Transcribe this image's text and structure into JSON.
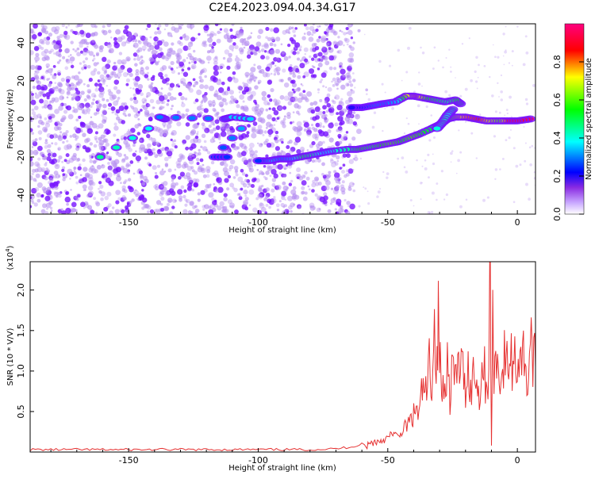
{
  "title": "C2E4.2023.094.04.34.G17",
  "colors": {
    "snr_line": "#e63232",
    "weak_dots": "#b48cf0",
    "strong_dots": "#7814ff",
    "colorbar_stops": [
      "#ffffff",
      "#8a2be2",
      "#0000ff",
      "#00ffff",
      "#00ff00",
      "#ffff00",
      "#ff0000",
      "#ff007f"
    ]
  },
  "chart_data": [
    {
      "type": "heatmap",
      "xlabel": "Height of straight line (km)",
      "ylabel": "Frequency (Hz)",
      "xlim": [
        -188,
        7
      ],
      "ylim": [
        -50,
        50
      ],
      "x_ticks": [
        -150,
        -100,
        -50,
        0
      ],
      "x_tick_labels": [
        "-150",
        "-100",
        "-50",
        "0"
      ],
      "y_ticks": [
        -40,
        -20,
        0,
        20,
        40
      ],
      "y_tick_labels": [
        "-40",
        "-20",
        "0",
        "20",
        "40"
      ],
      "colorbar": {
        "label": "Normalized spectral amplitude",
        "range": [
          0,
          1
        ],
        "ticks": [
          0.0,
          0.2,
          0.4,
          0.6,
          0.8
        ],
        "tick_labels": [
          "0.0",
          "0.2",
          "0.4",
          "0.6",
          "0.8"
        ]
      },
      "traces": [
        {
          "name": "main",
          "points": [
            {
              "x": 5,
              "y": 0,
              "amp": 0.95
            },
            {
              "x": 0,
              "y": -1,
              "amp": 0.9
            },
            {
              "x": -4,
              "y": -1,
              "amp": 0.92
            },
            {
              "x": -8,
              "y": -1,
              "amp": 0.6
            },
            {
              "x": -12,
              "y": -1,
              "amp": 0.7
            },
            {
              "x": -16,
              "y": 0,
              "amp": 0.85
            },
            {
              "x": -20,
              "y": 1,
              "amp": 0.8
            },
            {
              "x": -24,
              "y": 1,
              "amp": 0.7
            },
            {
              "x": -27,
              "y": 0,
              "amp": 0.55
            },
            {
              "x": -30,
              "y": -3,
              "amp": 0.45
            },
            {
              "x": -33,
              "y": -5,
              "amp": 0.5
            },
            {
              "x": -38,
              "y": -8,
              "amp": 0.55
            },
            {
              "x": -42,
              "y": -10,
              "amp": 0.6
            },
            {
              "x": -46,
              "y": -12,
              "amp": 0.55
            },
            {
              "x": -50,
              "y": -13,
              "amp": 0.6
            },
            {
              "x": -54,
              "y": -14,
              "amp": 0.55
            },
            {
              "x": -58,
              "y": -15,
              "amp": 0.5
            },
            {
              "x": -62,
              "y": -16,
              "amp": 0.55
            },
            {
              "x": -66,
              "y": -16,
              "amp": 0.45
            },
            {
              "x": -72,
              "y": -17,
              "amp": 0.4
            },
            {
              "x": -76,
              "y": -18,
              "amp": 0.35
            },
            {
              "x": -80,
              "y": -19,
              "amp": 0.45
            },
            {
              "x": -84,
              "y": -20,
              "amp": 0.5
            },
            {
              "x": -88,
              "y": -21,
              "amp": 0.35
            },
            {
              "x": -92,
              "y": -21,
              "amp": 0.3
            },
            {
              "x": -96,
              "y": -22,
              "amp": 0.35
            },
            {
              "x": -100,
              "y": -22,
              "amp": 0.25
            }
          ]
        },
        {
          "name": "upper",
          "points": [
            {
              "x": -22,
              "y": 8,
              "amp": 0.5
            },
            {
              "x": -24,
              "y": 10,
              "amp": 0.55
            },
            {
              "x": -28,
              "y": 9,
              "amp": 0.45
            },
            {
              "x": -32,
              "y": 10,
              "amp": 0.5
            },
            {
              "x": -36,
              "y": 11,
              "amp": 0.55
            },
            {
              "x": -40,
              "y": 12,
              "amp": 0.8
            },
            {
              "x": -43,
              "y": 12,
              "amp": 0.7
            },
            {
              "x": -47,
              "y": 9,
              "amp": 0.35
            },
            {
              "x": -52,
              "y": 8,
              "amp": 0.3
            },
            {
              "x": -56,
              "y": 7,
              "amp": 0.3
            },
            {
              "x": -60,
              "y": 6,
              "amp": 0.25
            },
            {
              "x": -64,
              "y": 6,
              "amp": 0.2
            }
          ]
        },
        {
          "name": "branch",
          "points": [
            {
              "x": -25,
              "y": 5,
              "amp": 0.45
            },
            {
              "x": -27,
              "y": 2,
              "amp": 0.4
            },
            {
              "x": -29,
              "y": -2,
              "amp": 0.45
            },
            {
              "x": -31,
              "y": -5,
              "amp": 0.4
            }
          ]
        },
        {
          "name": "isolated",
          "points": [
            {
              "x": -161,
              "y": -20,
              "amp": 0.45
            },
            {
              "x": -136,
              "y": 0,
              "amp": 0.35
            },
            {
              "x": -138,
              "y": 1,
              "amp": 0.3
            },
            {
              "x": -113,
              "y": 0,
              "amp": 0.3
            },
            {
              "x": -110,
              "y": 1,
              "amp": 0.35
            },
            {
              "x": -103,
              "y": 0,
              "amp": 0.35
            },
            {
              "x": -117,
              "y": -20,
              "amp": 0.25
            },
            {
              "x": -112,
              "y": -20,
              "amp": 0.25
            }
          ]
        }
      ]
    },
    {
      "type": "line",
      "xlabel": "Height of straight line (km)",
      "ylabel": "SNR (10 * V/V)",
      "y_scale_label": "(x10",
      "y_scale_exponent": "4",
      "xlim": [
        -188,
        7
      ],
      "ylim": [
        0,
        23500
      ],
      "x_ticks": [
        -150,
        -100,
        -50,
        0
      ],
      "x_tick_labels": [
        "-150",
        "-100",
        "-50",
        "0"
      ],
      "y_ticks": [
        5000,
        10000,
        15000,
        20000
      ],
      "y_tick_labels": [
        "0.5",
        "1.0",
        "1.5",
        "2.0"
      ],
      "series": [
        {
          "x": [
            -188,
            -160,
            -130,
            -100,
            -80,
            -70,
            -65,
            -62,
            -60,
            -58,
            -56,
            -54,
            -52,
            -50,
            -48,
            -46,
            -44,
            -42,
            -40,
            -39,
            -38,
            -37,
            -36,
            -35,
            -34,
            -33,
            -32,
            -31,
            -30.5,
            -30,
            -29.5,
            -29,
            -28,
            -27,
            -26,
            -25,
            -24,
            -23,
            -22,
            -21,
            -20,
            -19,
            -18,
            -17,
            -16,
            -15,
            -14,
            -13,
            -12,
            -11,
            -10.5,
            -10,
            -9.5,
            -9,
            -8,
            -7,
            -6,
            -5,
            -4,
            -3,
            -2,
            -1,
            0,
            1,
            2,
            3,
            4,
            5,
            6,
            7
          ],
          "y": [
            300,
            300,
            300,
            300,
            300,
            400,
            600,
            800,
            1000,
            800,
            1200,
            1300,
            1500,
            1700,
            2400,
            1800,
            2700,
            3500,
            4500,
            5500,
            4200,
            7000,
            8000,
            6500,
            11500,
            9000,
            15600,
            10000,
            16200,
            12000,
            9000,
            7000,
            10000,
            11000,
            7000,
            11500,
            8000,
            10500,
            11000,
            9500,
            8200,
            10500,
            7500,
            9500,
            10000,
            7000,
            9500,
            10500,
            8500,
            9800,
            23500,
            1000,
            15000,
            11000,
            11000,
            10500,
            9000,
            11500,
            10500,
            11500,
            11000,
            11800,
            10500,
            13000,
            11500,
            12500,
            7500,
            14000,
            12000,
            10500
          ]
        }
      ]
    }
  ]
}
